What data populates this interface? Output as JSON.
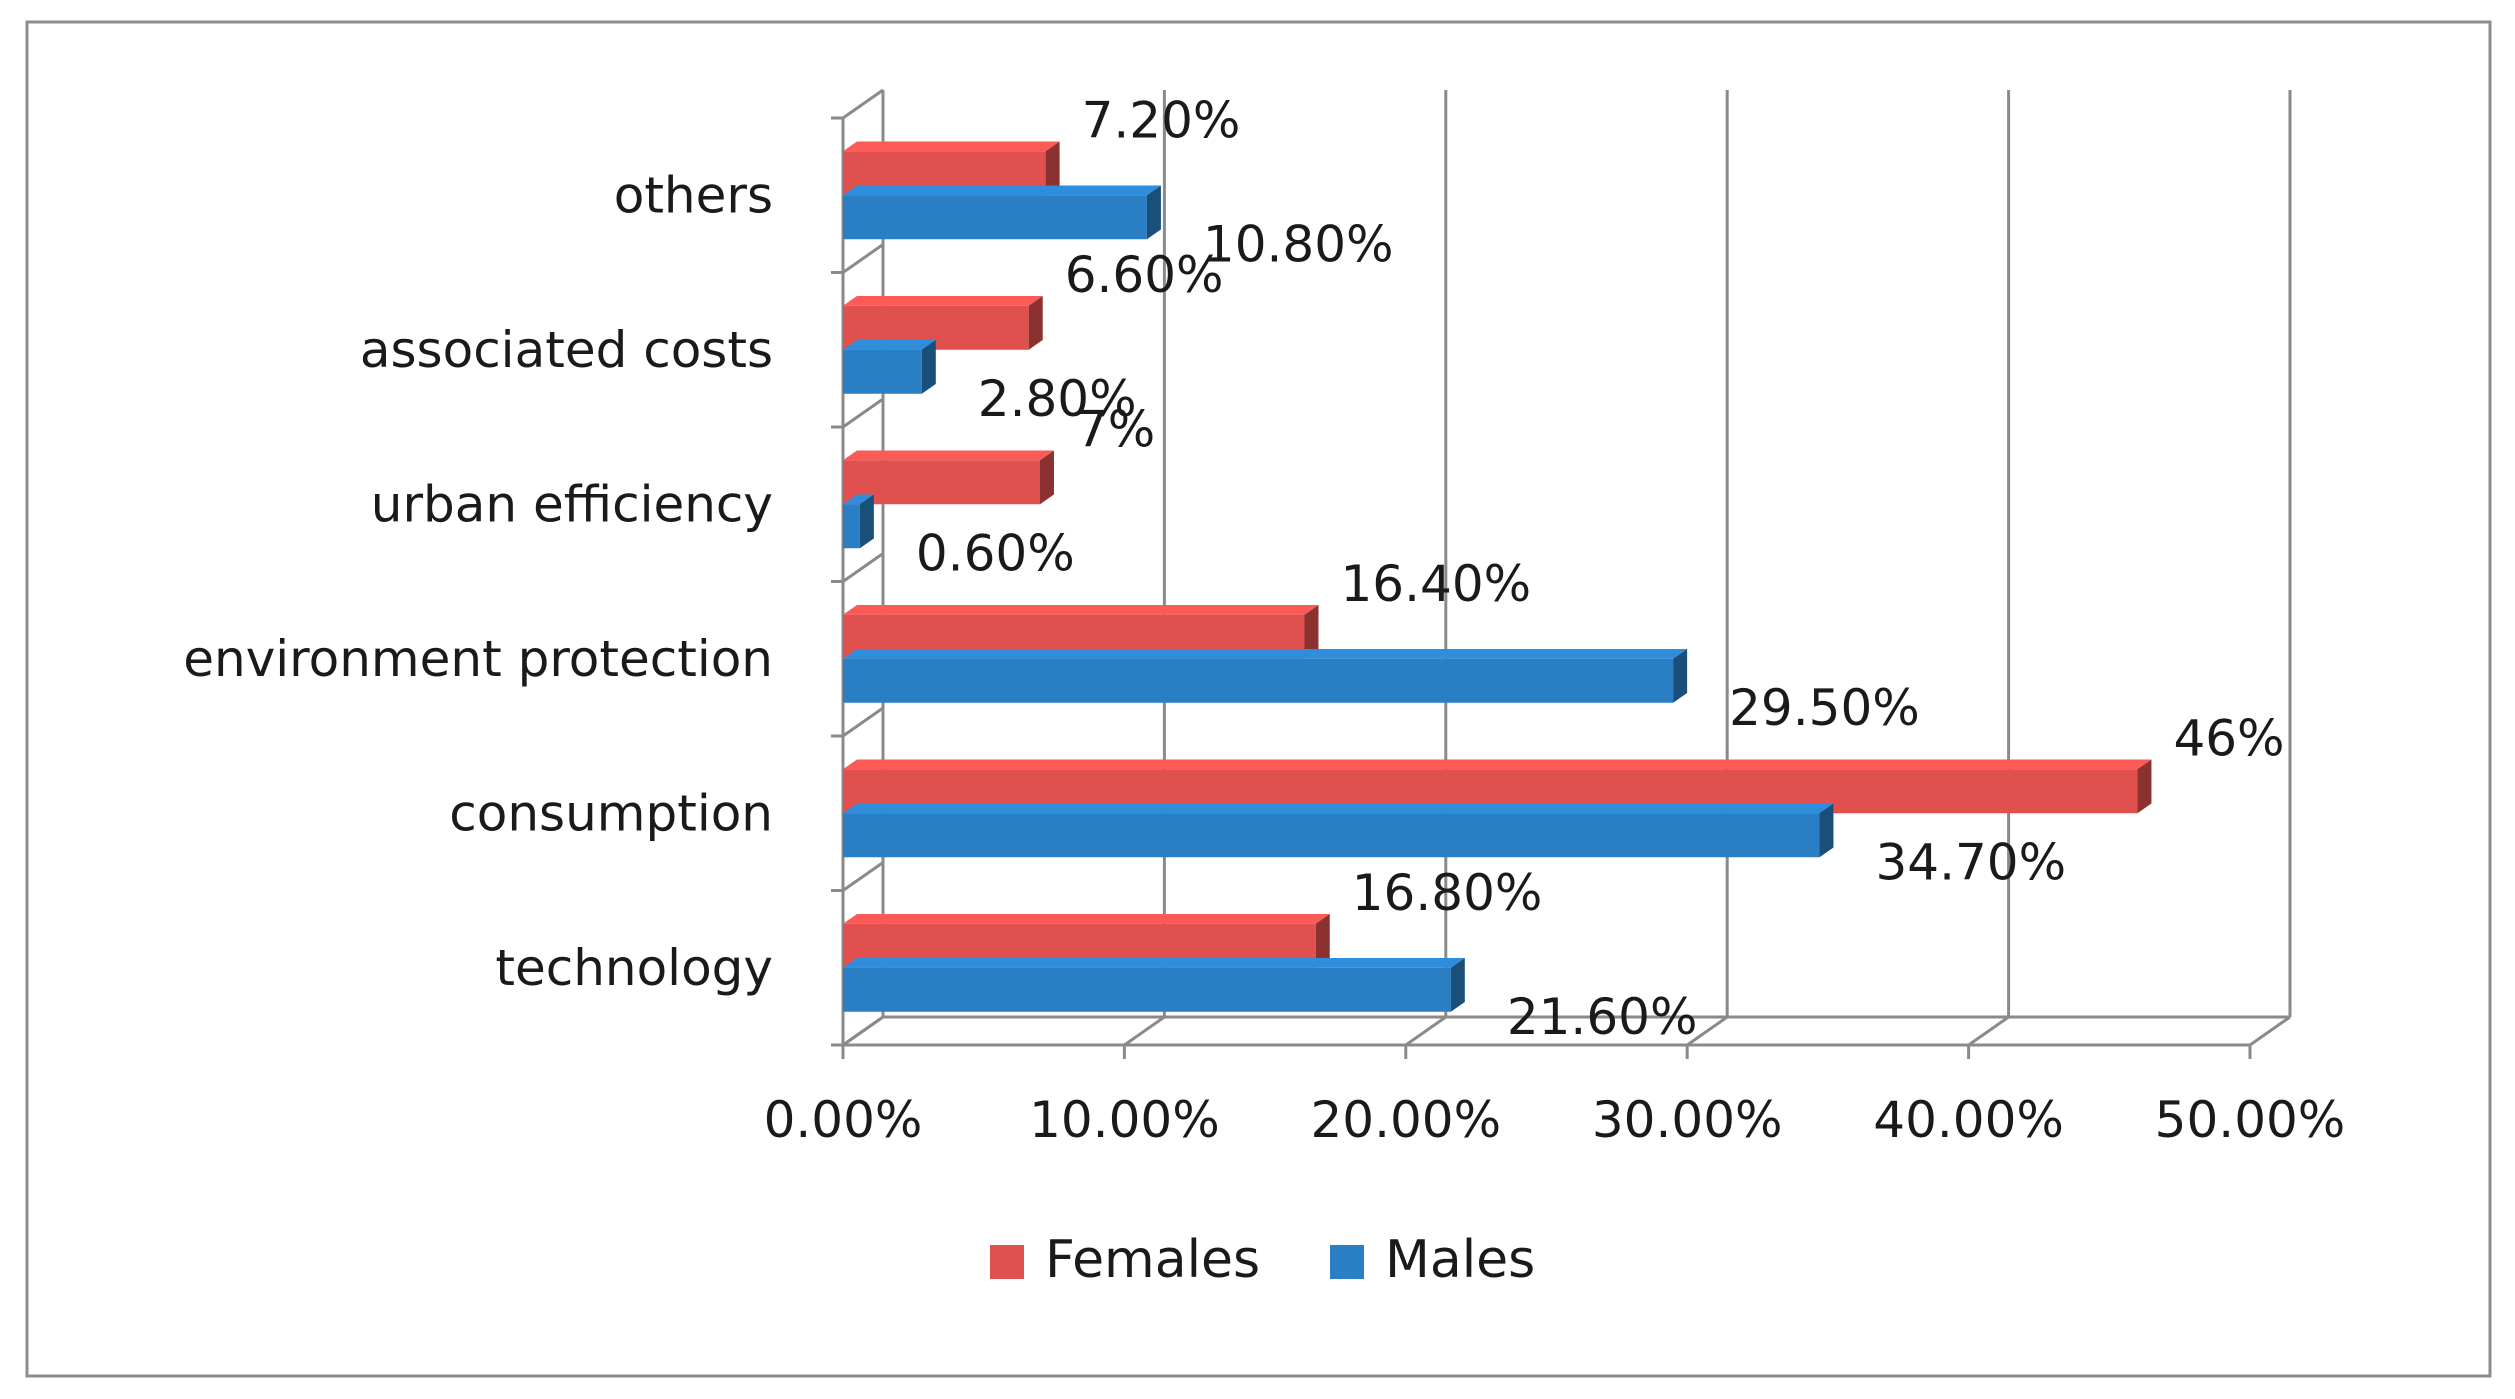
{
  "chart_data": {
    "type": "bar",
    "orientation": "horizontal",
    "style": "3d-clustered",
    "title": "",
    "xlabel": "",
    "ylabel": "",
    "xlim": [
      0,
      50
    ],
    "x_ticks": [
      0,
      10,
      20,
      30,
      40,
      50
    ],
    "x_tick_labels": [
      "0.00%",
      "10.00%",
      "20.00%",
      "30.00%",
      "40.00%",
      "50.00%"
    ],
    "grid": true,
    "legend_position": "bottom",
    "categories": [
      "technology",
      "consumption",
      "environment protection",
      "urban efficiency",
      "associated costs",
      "others"
    ],
    "series": [
      {
        "name": "Females",
        "color": "#e0504e",
        "values": [
          16.8,
          46,
          16.4,
          7,
          6.6,
          7.2
        ],
        "labels": [
          "16.80%",
          "46%",
          "16.40%",
          "7%",
          "6.60%",
          "7.20%"
        ]
      },
      {
        "name": "Males",
        "color": "#2a7fc4",
        "values": [
          21.6,
          34.7,
          29.5,
          0.6,
          2.8,
          10.8
        ],
        "labels": [
          "21.60%",
          "34.70%",
          "29.50%",
          "0.60%",
          "2.80%",
          "10.80%"
        ]
      }
    ]
  }
}
